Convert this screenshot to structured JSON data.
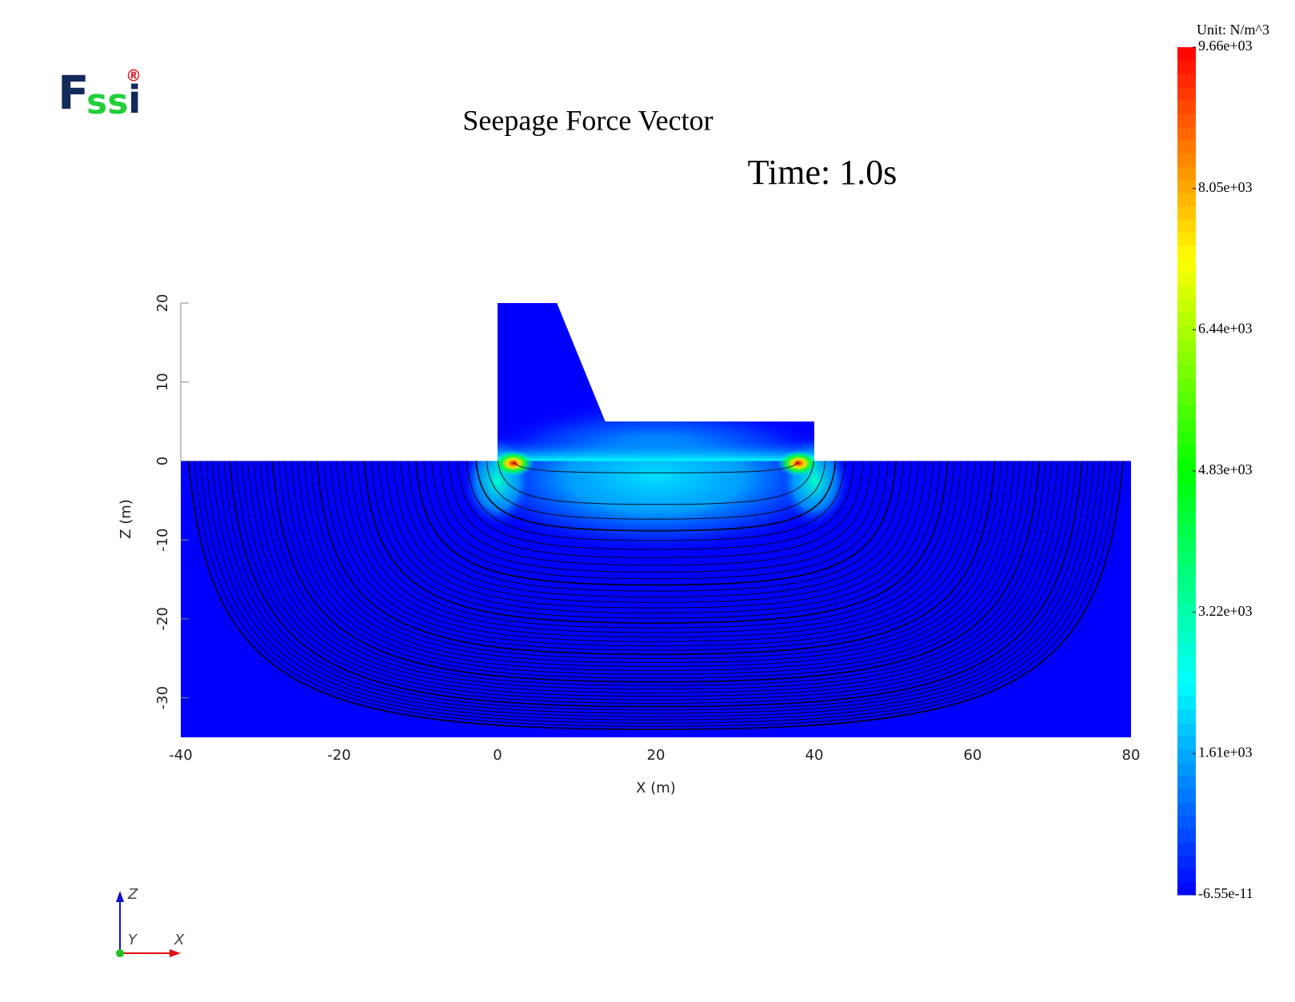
{
  "logo": {
    "parts": [
      "F",
      "ss",
      "i"
    ],
    "mark": "®"
  },
  "triad": {
    "labels": [
      "Z",
      "Y",
      "X"
    ]
  },
  "chart_data": {
    "type": "field",
    "title": "Seepage Force Vector",
    "subtitle": "Time: 1.0s",
    "x_label": "X (m)",
    "y_label": "Z (m)",
    "xlim": [
      -40,
      80
    ],
    "xticks": [
      -40,
      -20,
      0,
      20,
      40,
      60,
      80
    ],
    "ylim": [
      -35,
      20
    ],
    "yticks": [
      -30,
      -20,
      -10,
      0,
      10,
      20
    ],
    "soil": {
      "x": [
        -40,
        80
      ],
      "z": [
        -35,
        0
      ]
    },
    "dam": {
      "x": [
        0,
        0,
        7.5,
        13.6,
        40,
        40
      ],
      "z": [
        0,
        20,
        20,
        5,
        5,
        0
      ]
    },
    "hotspots": [
      {
        "x": 2,
        "z": -0.3,
        "value": 9660
      },
      {
        "x": 38,
        "z": -0.3,
        "value": 9660
      }
    ],
    "colorbar": {
      "title": "Unit: N/m^3",
      "clim": [
        -6.55e-11,
        9660
      ],
      "ticks": [
        {
          "value": 9660,
          "label": "9.66e+03"
        },
        {
          "value": 8050,
          "label": "8.05e+03"
        },
        {
          "value": 6440,
          "label": "6.44e+03"
        },
        {
          "value": 4830,
          "label": "4.83e+03"
        },
        {
          "value": 3220,
          "label": "3.22e+03"
        },
        {
          "value": 1610,
          "label": "1.61e+03"
        },
        {
          "value": -6.55e-11,
          "label": "-6.55e-11"
        }
      ],
      "colormap": [
        "#0000ff",
        "#00ffff",
        "#00ff00",
        "#ffff00",
        "#ff0000"
      ]
    }
  }
}
